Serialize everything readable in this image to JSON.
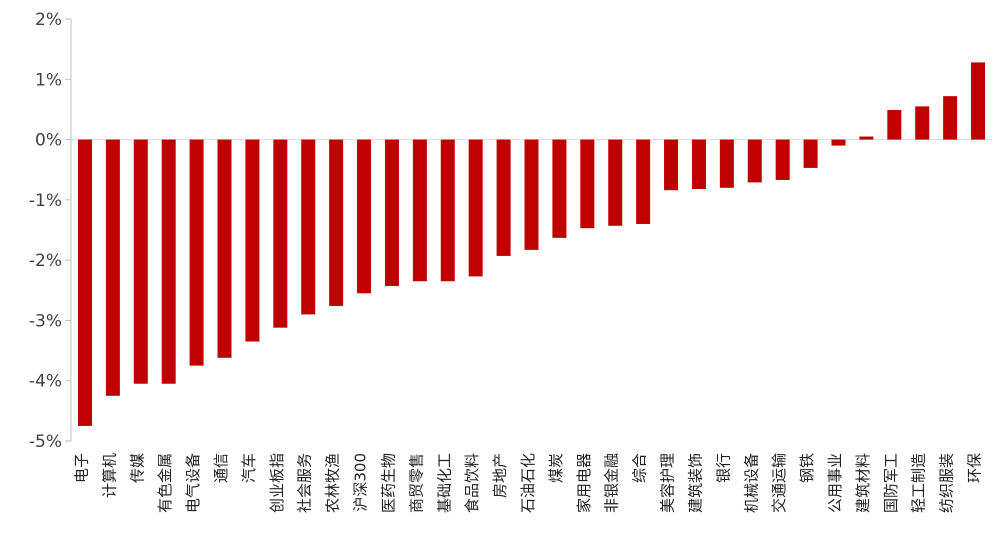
{
  "chart_data": {
    "type": "bar",
    "categories": [
      "电子",
      "计算机",
      "传媒",
      "有色金属",
      "电气设备",
      "通信",
      "汽车",
      "创业板指",
      "社会服务",
      "农林牧渔",
      "沪深300",
      "医药生物",
      "商贸零售",
      "基础化工",
      "食品饮料",
      "房地产",
      "石油石化",
      "煤炭",
      "家用电器",
      "非银金融",
      "综合",
      "美容护理",
      "建筑装饰",
      "银行",
      "机械设备",
      "交通运输",
      "钢铁",
      "公用事业",
      "建筑材料",
      "国防军工",
      "轻工制造",
      "纺织服装",
      "环保"
    ],
    "series": [
      {
        "values": [
          -4.75,
          -4.25,
          -4.05,
          -4.05,
          -3.75,
          -3.62,
          -3.35,
          -3.12,
          -2.9,
          -2.76,
          -2.55,
          -2.43,
          -2.35,
          -2.35,
          -2.27,
          -1.93,
          -1.83,
          -1.63,
          -1.47,
          -1.43,
          -1.4,
          -0.84,
          -0.82,
          -0.8,
          -0.71,
          -0.67,
          -0.47,
          -0.1,
          0.05,
          0.49,
          0.55,
          0.72,
          1.28
        ]
      }
    ],
    "ylim": [
      -5,
      2
    ],
    "yticks": [
      "2%",
      "1%",
      "0%",
      "-1%",
      "-2%",
      "-3%",
      "-4%",
      "-5%"
    ],
    "bar_color": "#c00000",
    "grid": false,
    "legend": "none"
  }
}
